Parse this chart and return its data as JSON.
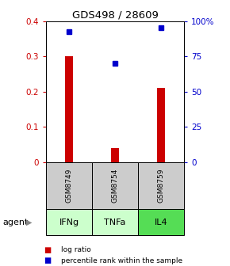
{
  "title": "GDS498 / 28609",
  "samples": [
    "GSM8749",
    "GSM8754",
    "GSM8759"
  ],
  "agents": [
    "IFNg",
    "TNFa",
    "IL4"
  ],
  "log_ratios": [
    0.3,
    0.04,
    0.21
  ],
  "percentile_ranks": [
    0.37,
    0.28,
    0.382
  ],
  "bar_color": "#cc0000",
  "dot_color": "#0000cc",
  "ylim_left": [
    0,
    0.4
  ],
  "ylim_right": [
    0,
    100
  ],
  "yticks_left": [
    0,
    0.1,
    0.2,
    0.3,
    0.4
  ],
  "yticks_right": [
    0,
    25,
    50,
    75,
    100
  ],
  "ytick_labels_left": [
    "0",
    "0.1",
    "0.2",
    "0.3",
    "0.4"
  ],
  "ytick_labels_right": [
    "0",
    "25",
    "50",
    "75",
    "100%"
  ],
  "sample_bg_color": "#cccccc",
  "agent_colors": [
    "#ccffcc",
    "#ccffcc",
    "#55dd55"
  ],
  "bar_width": 0.18,
  "bar_positions": [
    1,
    2,
    3
  ],
  "agent_label": "agent",
  "legend_bar_label": "log ratio",
  "legend_dot_label": "percentile rank within the sample"
}
